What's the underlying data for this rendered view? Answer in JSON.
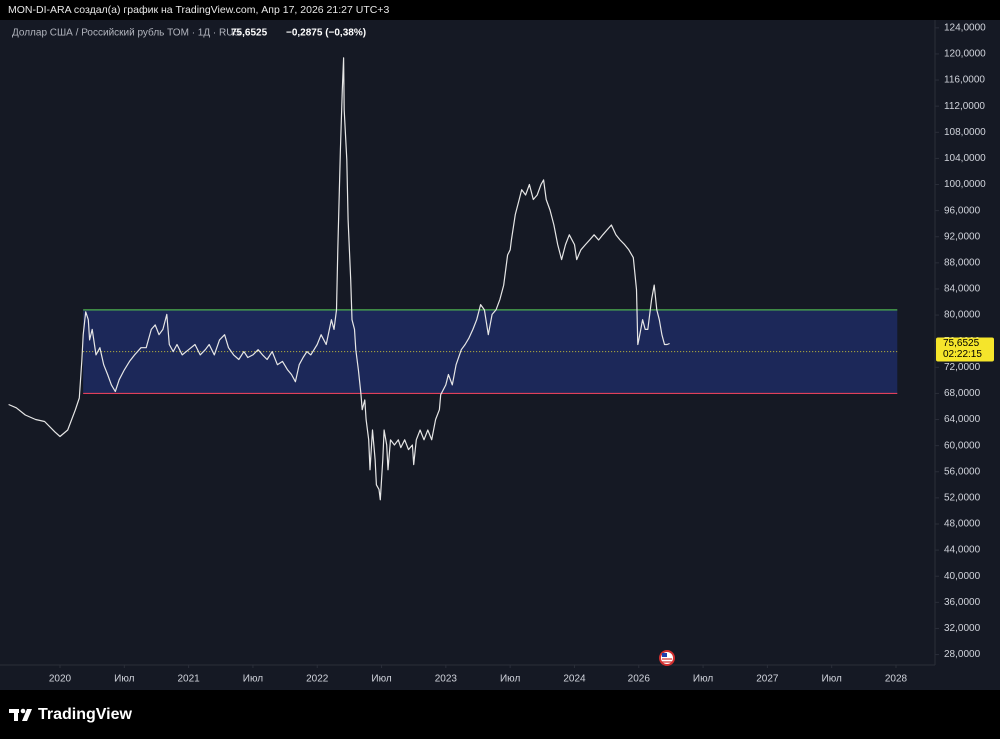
{
  "header": "MON-DI-ARA создал(а) график на TradingView.com, Апр 17, 2026 21:27 UTC+3",
  "brand": "TradingView",
  "chart_data": {
    "type": "line",
    "symbol": "Доллар США / Российский рубль ТОМ · 1Д · RUS",
    "last_label": "75,6525",
    "change_label": "−0,2875 (−0,38%)",
    "countdown": "02:22:15",
    "color": "#e6e6e6",
    "price_label_color": "#f5e52b",
    "grid": false,
    "x": [
      2019.6,
      2019.66,
      2019.73,
      2019.81,
      2019.88,
      2019.96,
      2020.0,
      2020.06,
      2020.12,
      2020.15,
      2020.17,
      2020.18,
      2020.2,
      2020.22,
      2020.23,
      2020.25,
      2020.28,
      2020.31,
      2020.34,
      2020.37,
      2020.4,
      2020.43,
      2020.46,
      2020.5,
      2020.54,
      2020.58,
      2020.63,
      2020.67,
      2020.71,
      2020.74,
      2020.77,
      2020.8,
      2020.83,
      2020.85,
      2020.88,
      2020.91,
      2020.95,
      2021.0,
      2021.05,
      2021.09,
      2021.13,
      2021.16,
      2021.2,
      2021.24,
      2021.28,
      2021.31,
      2021.35,
      2021.39,
      2021.43,
      2021.46,
      2021.5,
      2021.54,
      2021.58,
      2021.61,
      2021.65,
      2021.69,
      2021.73,
      2021.77,
      2021.8,
      2021.83,
      2021.86,
      2021.89,
      2021.92,
      2021.95,
      2022.0,
      2022.03,
      2022.07,
      2022.11,
      2022.13,
      2022.15,
      2022.16,
      2022.18,
      2022.195,
      2022.205,
      2022.21,
      2022.23,
      2022.24,
      2022.26,
      2022.27,
      2022.29,
      2022.3,
      2022.32,
      2022.34,
      2022.35,
      2022.37,
      2022.38,
      2022.4,
      2022.41,
      2022.43,
      2022.45,
      2022.46,
      2022.48,
      2022.49,
      2022.51,
      2022.52,
      2022.54,
      2022.55,
      2022.57,
      2022.6,
      2022.63,
      2022.65,
      2022.68,
      2022.71,
      2022.74,
      2022.75,
      2022.77,
      2022.8,
      2022.83,
      2022.86,
      2022.89,
      2022.92,
      2022.95,
      2022.96,
      2023.0,
      2023.02,
      2023.05,
      2023.08,
      2023.12,
      2023.15,
      2023.18,
      2023.21,
      2023.24,
      2023.27,
      2023.3,
      2023.33,
      2023.36,
      2023.39,
      2023.42,
      2023.45,
      2023.48,
      2023.5,
      2023.51,
      2023.54,
      2023.57,
      2023.59,
      2023.62,
      2023.65,
      2023.68,
      2023.71,
      2023.74,
      2023.76,
      2023.78,
      2023.81,
      2023.84,
      2023.87,
      2023.9,
      2023.93,
      2023.96,
      2024.0,
      2024.07,
      2024.2,
      2024.34,
      2024.47,
      2024.61,
      2024.75,
      2024.88,
      2025.02,
      2025.15,
      2025.29,
      2025.42,
      2025.56,
      2025.69,
      2025.83,
      2025.93,
      2025.97,
      2026.0,
      2026.03,
      2026.05,
      2026.07,
      2026.1,
      2026.12,
      2026.14,
      2026.16,
      2026.18,
      2026.2,
      2026.22,
      2026.24
    ],
    "values": [
      66.3,
      65.8,
      64.7,
      64.0,
      63.7,
      62.1,
      61.4,
      62.4,
      65.5,
      67.3,
      73.2,
      77.0,
      80.5,
      79.3,
      76.2,
      77.8,
      73.9,
      75.0,
      72.4,
      70.9,
      69.3,
      68.3,
      70.1,
      71.6,
      72.9,
      73.9,
      75.0,
      75.0,
      77.8,
      78.5,
      77.0,
      77.8,
      80.1,
      75.5,
      74.4,
      75.5,
      73.9,
      74.7,
      75.5,
      73.9,
      74.7,
      75.5,
      73.9,
      76.2,
      77.0,
      75.0,
      73.9,
      73.2,
      74.4,
      73.5,
      73.9,
      74.7,
      73.8,
      73.2,
      74.4,
      72.4,
      72.9,
      71.6,
      70.9,
      69.8,
      72.4,
      73.5,
      74.4,
      73.9,
      75.5,
      77.0,
      75.5,
      79.3,
      77.8,
      80.8,
      90.0,
      105.3,
      114.5,
      119.4,
      111.4,
      103.8,
      94.6,
      85.4,
      79.3,
      77.8,
      74.7,
      71.6,
      67.8,
      65.5,
      67.0,
      64.0,
      60.9,
      56.3,
      62.4,
      57.9,
      54.0,
      53.3,
      51.7,
      57.9,
      62.4,
      60.1,
      56.3,
      60.9,
      60.1,
      60.9,
      59.7,
      60.9,
      59.4,
      60.1,
      57.1,
      60.9,
      62.4,
      60.9,
      62.4,
      60.9,
      64.0,
      65.5,
      67.8,
      69.3,
      70.9,
      69.3,
      72.4,
      74.7,
      75.5,
      76.5,
      77.8,
      79.3,
      81.6,
      80.8,
      77.0,
      80.1,
      80.8,
      82.4,
      84.6,
      89.2,
      90.0,
      91.5,
      95.4,
      97.7,
      99.2,
      98.4,
      100.0,
      97.7,
      98.4,
      100.0,
      100.7,
      97.7,
      96.1,
      93.8,
      90.8,
      88.5,
      90.8,
      92.3,
      90.8,
      88.5,
      90.0,
      90.8,
      91.5,
      92.3,
      91.5,
      92.3,
      93.1,
      93.8,
      92.3,
      91.5,
      90.8,
      90.0,
      88.8,
      83.9,
      75.5,
      76.2,
      79.3,
      77.8,
      77.8,
      82.4,
      84.6,
      80.8,
      79.3,
      77.0,
      75.5,
      75.5,
      75.6525
    ],
    "range_box": {
      "x": [
        2020.18,
        2028.01
      ],
      "top": 80.8,
      "bottom": 68.0,
      "mid": 74.4,
      "fill": "#1d2c63",
      "top_color": "#4caf50",
      "bottom_color": "#e0405a",
      "mid_color": "#c9c23a"
    },
    "xlim": [
      2019.54,
      2028.28
    ],
    "xticks": [
      2020,
      {
        "value": 2020.5,
        "label": "Июл"
      },
      2021,
      {
        "value": 2021.5,
        "label": "Июл"
      },
      2022,
      {
        "value": 2022.5,
        "label": "Июл"
      },
      2023,
      {
        "value": 2023.5,
        "label": "Июл"
      },
      2024,
      2026,
      {
        "value": 2026.5,
        "label": "Июл"
      },
      2027,
      {
        "value": 2027.5,
        "label": "Июл"
      },
      2028
    ],
    "ylim": [
      26.4,
      125.2
    ],
    "yticks": [
      {
        "value": 28,
        "label": "28,0000"
      },
      {
        "value": 32,
        "label": "32,0000"
      },
      {
        "value": 36,
        "label": "36,0000"
      },
      {
        "value": 40,
        "label": "40,0000"
      },
      {
        "value": 44,
        "label": "44,0000"
      },
      {
        "value": 48,
        "label": "48,0000"
      },
      {
        "value": 52,
        "label": "52,0000"
      },
      {
        "value": 56,
        "label": "56,0000"
      },
      {
        "value": 60,
        "label": "60,0000"
      },
      {
        "value": 64,
        "label": "64,0000"
      },
      {
        "value": 68,
        "label": "68,0000"
      },
      {
        "value": 72,
        "label": "72,0000"
      },
      {
        "value": 76,
        "label": "76,0000"
      },
      {
        "value": 80,
        "label": "80,0000"
      },
      {
        "value": 84,
        "label": "84,0000"
      },
      {
        "value": 88,
        "label": "88,0000"
      },
      {
        "value": 92,
        "label": "92,0000"
      },
      {
        "value": 96,
        "label": "96,0000"
      },
      {
        "value": 100,
        "label": "100,0000"
      },
      {
        "value": 104,
        "label": "104,0000"
      },
      {
        "value": 108,
        "label": "108,0000"
      },
      {
        "value": 112,
        "label": "112,0000"
      },
      {
        "value": 116,
        "label": "116,0000"
      },
      {
        "value": 120,
        "label": "120,0000"
      },
      {
        "value": 124,
        "label": "124,0000"
      }
    ]
  }
}
